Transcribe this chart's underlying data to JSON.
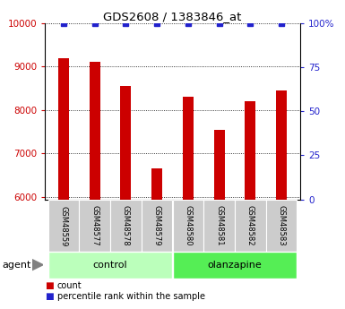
{
  "title": "GDS2608 / 1383846_at",
  "samples": [
    "GSM48559",
    "GSM48577",
    "GSM48578",
    "GSM48579",
    "GSM48580",
    "GSM48581",
    "GSM48582",
    "GSM48583"
  ],
  "bar_values": [
    9200,
    9100,
    8550,
    6650,
    8300,
    7550,
    8200,
    8450
  ],
  "percentile_values": [
    100,
    100,
    100,
    100,
    100,
    100,
    100,
    100
  ],
  "bar_color": "#cc0000",
  "dot_color": "#2222cc",
  "ylim_left": [
    5940,
    10000
  ],
  "ylim_right": [
    0,
    100
  ],
  "yticks_left": [
    6000,
    7000,
    8000,
    9000,
    10000
  ],
  "yticks_right": [
    0,
    25,
    50,
    75,
    100
  ],
  "groups": [
    {
      "label": "control",
      "indices": [
        0,
        1,
        2,
        3
      ],
      "color": "#bbffbb"
    },
    {
      "label": "olanzapine",
      "indices": [
        4,
        5,
        6,
        7
      ],
      "color": "#55ee55"
    }
  ],
  "agent_label": "agent",
  "legend_items": [
    {
      "label": "count",
      "color": "#cc0000"
    },
    {
      "label": "percentile rank within the sample",
      "color": "#2222cc"
    }
  ],
  "ylabel_left_color": "#cc0000",
  "ylabel_right_color": "#2222cc",
  "tick_label_bg": "#cccccc",
  "background_color": "#ffffff",
  "bar_width": 0.35
}
